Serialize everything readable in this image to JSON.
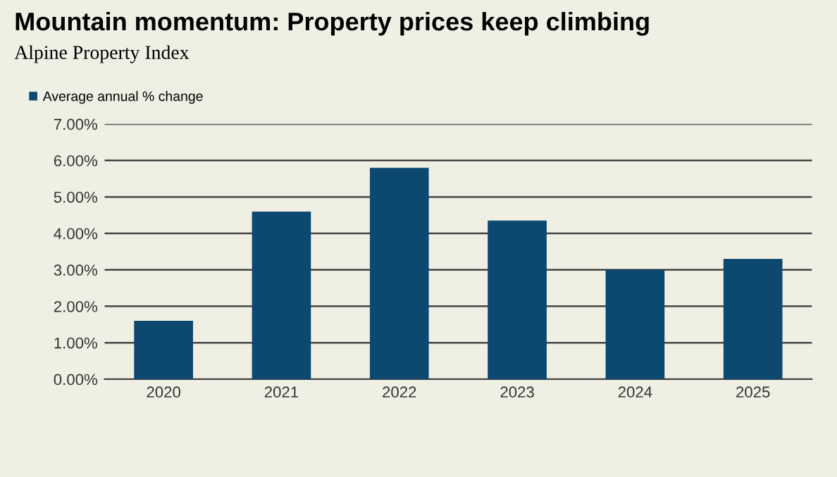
{
  "chart_data": {
    "type": "bar",
    "title": "Mountain momentum: Property prices keep climbing",
    "subtitle": "Alpine Property Index",
    "categories": [
      "2020",
      "2021",
      "2022",
      "2023",
      "2024",
      "2025"
    ],
    "series": [
      {
        "name": "Average annual % change",
        "color": "#0c4870",
        "values": [
          1.6,
          4.6,
          5.8,
          4.35,
          3.0,
          3.3
        ]
      }
    ],
    "ylim": [
      0,
      7
    ],
    "yticks": [
      {
        "value": 0,
        "label": "0.00%"
      },
      {
        "value": 1,
        "label": "1.00%"
      },
      {
        "value": 2,
        "label": "2.00%"
      },
      {
        "value": 3,
        "label": "3.00%"
      },
      {
        "value": 4,
        "label": "4.00%"
      },
      {
        "value": 5,
        "label": "5.00%"
      },
      {
        "value": 6,
        "label": "6.00%"
      },
      {
        "value": 7,
        "label": "7.00%"
      }
    ],
    "grid": "y",
    "legend": "top left"
  }
}
